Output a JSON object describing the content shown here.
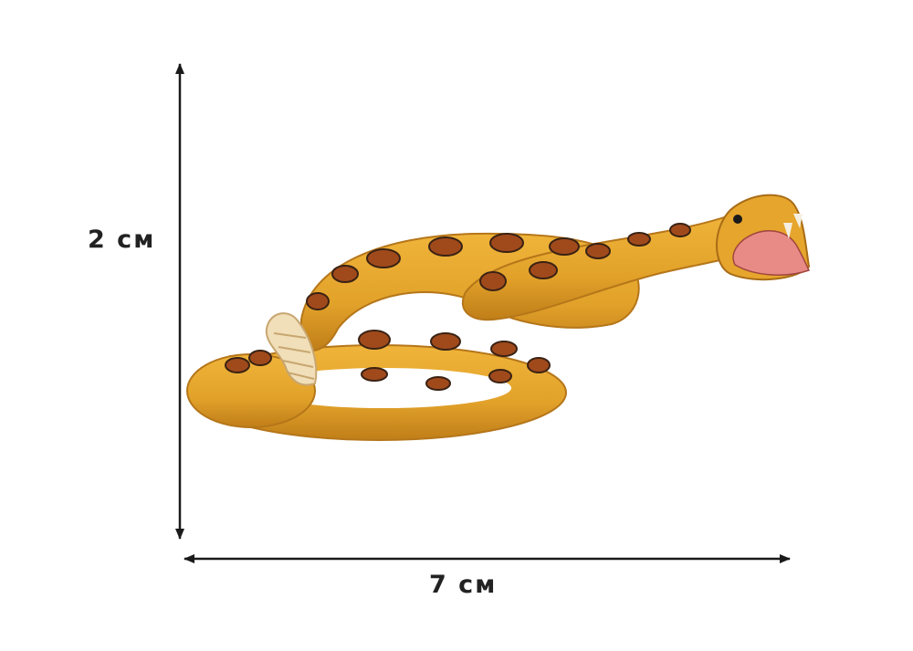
{
  "image": {
    "subject": "snake",
    "colors": {
      "background": "#ffffff",
      "body": "#e2a22a",
      "body_shadow": "#c07e18",
      "pattern": "#a04a1c",
      "pattern_outline": "#3a2214",
      "mouth": "#e88a86",
      "rattle": "#f0dfb8",
      "line": "#1a1a1a"
    }
  },
  "dimensions": {
    "height_label": "2 см",
    "width_label": "7 см"
  }
}
